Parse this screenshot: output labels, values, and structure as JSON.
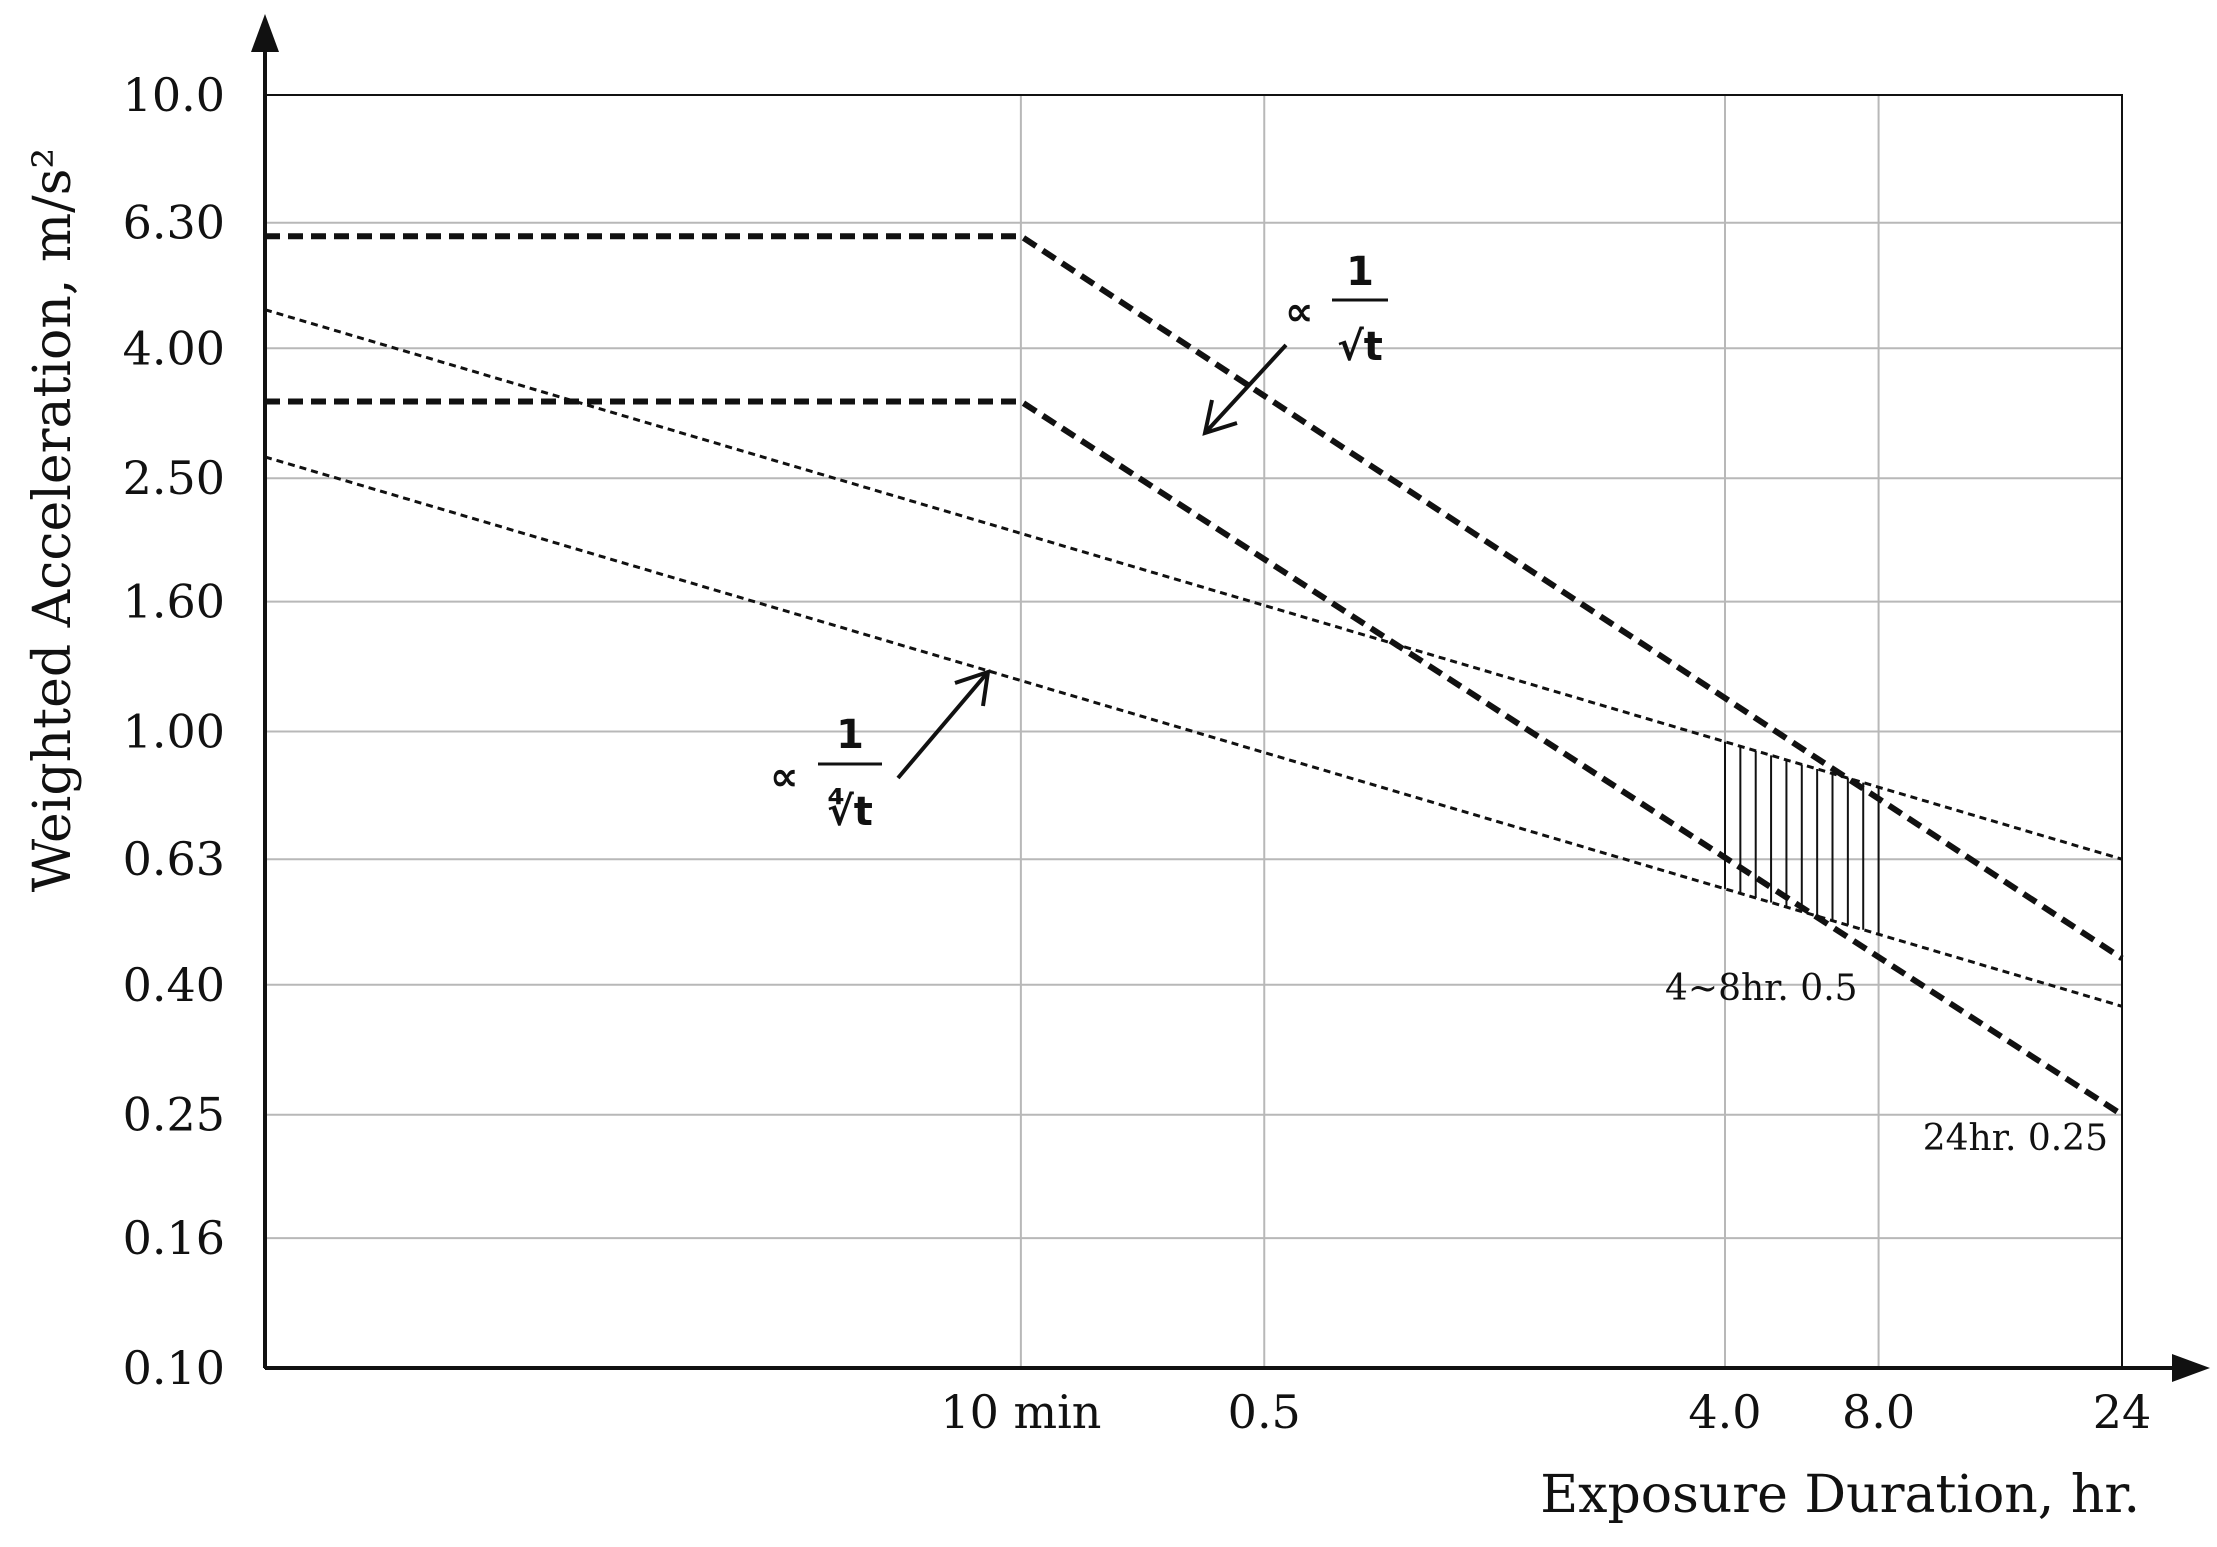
{
  "chart_data": {
    "type": "line",
    "xlabel": "Exposure Duration, hr.",
    "ylabel": "Weighted Acceleration, m/s²",
    "y_scale": "log",
    "ylim": [
      0.1,
      10.0
    ],
    "y_ticks": [
      {
        "value": 10.0,
        "label": "10.0"
      },
      {
        "value": 6.3,
        "label": "6.30"
      },
      {
        "value": 4.0,
        "label": "4.00"
      },
      {
        "value": 2.5,
        "label": "2.50"
      },
      {
        "value": 1.6,
        "label": "1.60"
      },
      {
        "value": 1.0,
        "label": "1.00"
      },
      {
        "value": 0.63,
        "label": "0.63"
      },
      {
        "value": 0.4,
        "label": "0.40"
      },
      {
        "value": 0.25,
        "label": "0.25"
      },
      {
        "value": 0.16,
        "label": "0.16"
      },
      {
        "value": 0.1,
        "label": "0.10"
      }
    ],
    "x_scale": "log",
    "xlim": [
      0.0055,
      24
    ],
    "x_ticks": [
      {
        "value": 0.1667,
        "label": "10 min"
      },
      {
        "value": 0.5,
        "label": "0.5"
      },
      {
        "value": 4.0,
        "label": "4.0"
      },
      {
        "value": 8.0,
        "label": "8.0"
      },
      {
        "value": 24,
        "label": "24"
      }
    ],
    "series": [
      {
        "style": "thick-dashed",
        "points": [
          {
            "x": 0.0055,
            "y": 6.0
          },
          {
            "x": 0.1667,
            "y": 6.0
          },
          {
            "x": 24,
            "y": 0.44
          }
        ]
      },
      {
        "style": "thick-dashed",
        "points": [
          {
            "x": 0.0055,
            "y": 3.3
          },
          {
            "x": 0.1667,
            "y": 3.3
          },
          {
            "x": 24,
            "y": 0.25
          }
        ]
      },
      {
        "style": "thin-dashed",
        "points": [
          {
            "x": 0.0055,
            "y": 4.6
          },
          {
            "x": 24,
            "y": 0.63
          }
        ]
      },
      {
        "style": "thin-dashed",
        "points": [
          {
            "x": 0.0055,
            "y": 2.7
          },
          {
            "x": 24,
            "y": 0.37
          }
        ]
      }
    ],
    "hatched_region": {
      "x_range": [
        4.0,
        8.0
      ],
      "label": "4~8hr. 0.5"
    },
    "annotations": [
      {
        "text": "24hr. 0.25"
      },
      {
        "prefix": "∝",
        "numerator": "1",
        "denominator": "√t"
      },
      {
        "prefix": "∝",
        "numerator": "1",
        "denominator": "∜t"
      }
    ]
  }
}
